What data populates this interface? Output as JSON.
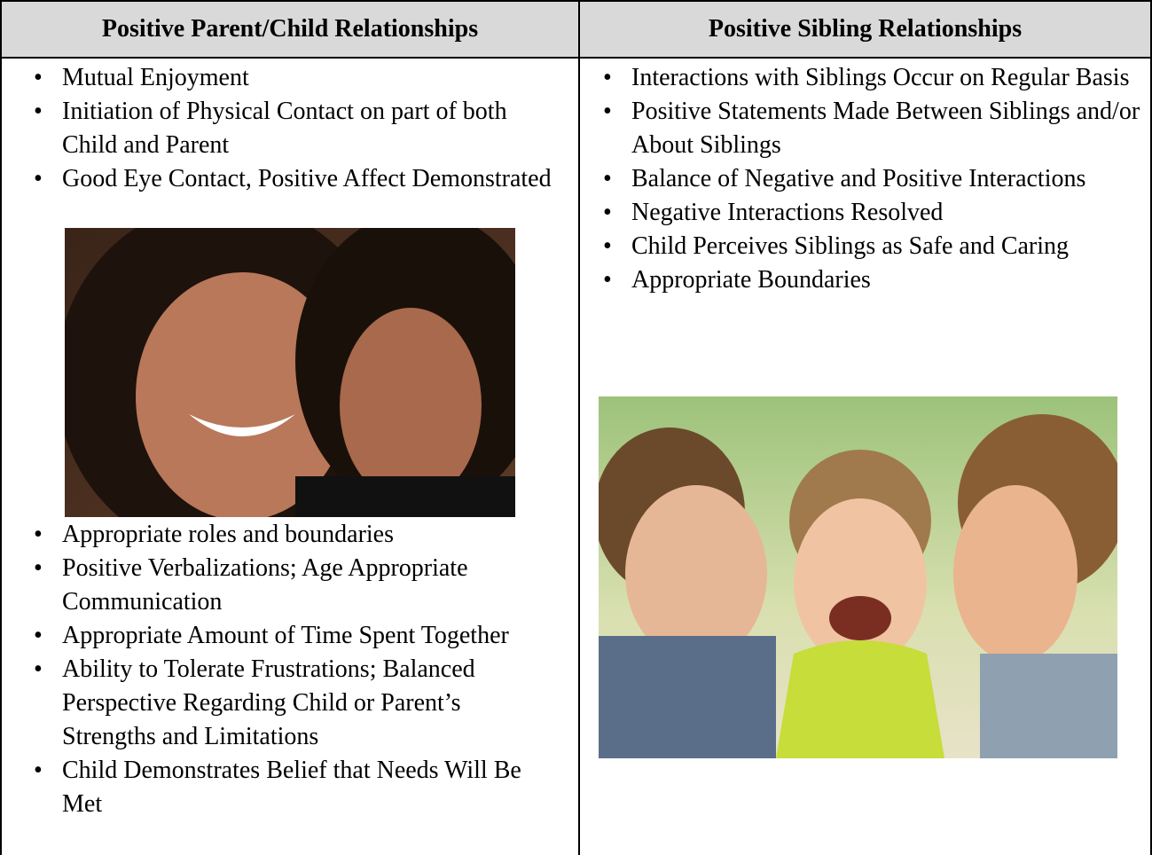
{
  "table": {
    "columns": [
      {
        "header": "Positive Parent/Child Relationships",
        "items_before_photo": [
          "Mutual Enjoyment",
          "Initiation of Physical Contact on part of both Child and Parent",
          "Good Eye Contact, Positive Affect Demonstrated"
        ],
        "items_after_photo": [
          "Appropriate roles and boundaries",
          "Positive Verbalizations; Age Appropriate Communication",
          "Appropriate Amount of Time Spent Together",
          "Ability to Tolerate Frustrations; Balanced Perspective Regarding Child or Parent’s Strengths and Limitations",
          "Child Demonstrates Belief that Needs Will Be Met"
        ]
      },
      {
        "header": "Positive Sibling Relationships",
        "items_before_photo": [
          "Interactions with Siblings Occur on Regular Basis",
          "Positive Statements Made Between Siblings and/or About Siblings",
          "Balance of Negative and Positive Interactions",
          "Negative Interactions Resolved",
          "Child Perceives Siblings as Safe and Caring",
          "Appropriate Boundaries"
        ]
      }
    ]
  }
}
